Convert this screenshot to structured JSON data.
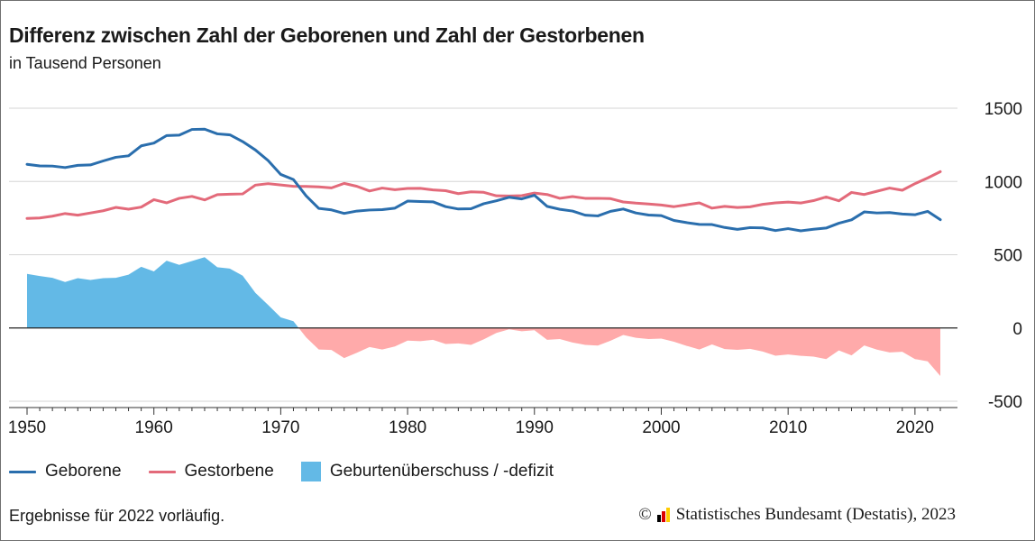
{
  "title": "Differenz zwischen Zahl der Geborenen und Zahl der Gestorbenen",
  "subtitle": "in Tausend Personen",
  "footnote": "Ergebnisse für 2022 vorläufig.",
  "source": {
    "copyright": "©",
    "text": "Statistisches Bundesamt (Destatis), 2023",
    "flag_colors": [
      "#000000",
      "#dd0000",
      "#ffcc00"
    ]
  },
  "colors": {
    "births": "#2a6ead",
    "deaths": "#e36a7a",
    "surplus": "#63b9e6",
    "deficit": "#ffaaaa",
    "grid": "#d6d6d6",
    "zero": "#222222"
  },
  "legend": [
    {
      "label": "Geborene",
      "kind": "line",
      "color": "#2a6ead"
    },
    {
      "label": "Gestorbene",
      "kind": "line",
      "color": "#e36a7a"
    },
    {
      "label": "Geburtenüberschuss / -defizit",
      "kind": "box",
      "color": "#63b9e6"
    }
  ],
  "chart_data": {
    "type": "line",
    "title": "Differenz zwischen Zahl der Geborenen und Zahl der Gestorbenen",
    "subtitle": "in Tausend Personen",
    "xlabel": "",
    "ylabel": "",
    "xlim": [
      1950,
      2022
    ],
    "ylim": [
      -500,
      1500
    ],
    "x_ticks": [
      1950,
      1960,
      1970,
      1980,
      1990,
      2000,
      2010,
      2020
    ],
    "y_ticks": [
      1500,
      1000,
      500,
      0,
      -500
    ],
    "grid": true,
    "legend_position": "bottom",
    "x": [
      1950,
      1951,
      1952,
      1953,
      1954,
      1955,
      1956,
      1957,
      1958,
      1959,
      1960,
      1961,
      1962,
      1963,
      1964,
      1965,
      1966,
      1967,
      1968,
      1969,
      1970,
      1971,
      1972,
      1973,
      1974,
      1975,
      1976,
      1977,
      1978,
      1979,
      1980,
      1981,
      1982,
      1983,
      1984,
      1985,
      1986,
      1987,
      1988,
      1989,
      1990,
      1991,
      1992,
      1993,
      1994,
      1995,
      1996,
      1997,
      1998,
      1999,
      2000,
      2001,
      2002,
      2003,
      2004,
      2005,
      2006,
      2007,
      2008,
      2009,
      2010,
      2011,
      2012,
      2013,
      2014,
      2015,
      2016,
      2017,
      2018,
      2019,
      2020,
      2021,
      2022
    ],
    "series": [
      {
        "name": "Geborene",
        "values": [
          1117,
          1106,
          1105,
          1095,
          1110,
          1113,
          1140,
          1165,
          1175,
          1243,
          1262,
          1313,
          1316,
          1355,
          1357,
          1325,
          1318,
          1272,
          1215,
          1143,
          1048,
          1013,
          902,
          816,
          806,
          782,
          798,
          805,
          808,
          818,
          866,
          863,
          861,
          828,
          812,
          814,
          848,
          868,
          892,
          881,
          906,
          830,
          810,
          798,
          770,
          765,
          796,
          812,
          785,
          771,
          767,
          734,
          719,
          707,
          706,
          686,
          673,
          685,
          683,
          665,
          678,
          663,
          674,
          682,
          715,
          738,
          792,
          785,
          788,
          778,
          773,
          796,
          739
        ]
      },
      {
        "name": "Gestorbene",
        "values": [
          748,
          751,
          763,
          781,
          770,
          785,
          800,
          823,
          811,
          825,
          876,
          854,
          885,
          898,
          874,
          910,
          913,
          915,
          975,
          985,
          976,
          967,
          966,
          963,
          956,
          987,
          967,
          935,
          955,
          944,
          952,
          953,
          942,
          937,
          917,
          929,
          926,
          902,
          901,
          903,
          921,
          911,
          885,
          897,
          885,
          885,
          883,
          860,
          852,
          846,
          839,
          828,
          841,
          854,
          818,
          830,
          822,
          827,
          844,
          854,
          859,
          853,
          869,
          894,
          868,
          925,
          911,
          933,
          955,
          940,
          985,
          1024,
          1067
        ]
      },
      {
        "name": "Geburtenüberschuss / -defizit",
        "values": [
          369,
          355,
          342,
          314,
          340,
          328,
          340,
          342,
          364,
          418,
          386,
          459,
          431,
          457,
          483,
          415,
          405,
          357,
          240,
          158,
          72,
          46,
          -64,
          -147,
          -150,
          -205,
          -169,
          -130,
          -147,
          -126,
          -86,
          -90,
          -81,
          -109,
          -105,
          -115,
          -78,
          -34,
          -9,
          -22,
          -15,
          -81,
          -75,
          -99,
          -115,
          -120,
          -87,
          -48,
          -67,
          -75,
          -72,
          -94,
          -122,
          -147,
          -112,
          -144,
          -149,
          -142,
          -161,
          -189,
          -181,
          -190,
          -195,
          -212,
          -153,
          -187,
          -119,
          -148,
          -167,
          -162,
          -212,
          -228,
          -328
        ]
      }
    ]
  }
}
